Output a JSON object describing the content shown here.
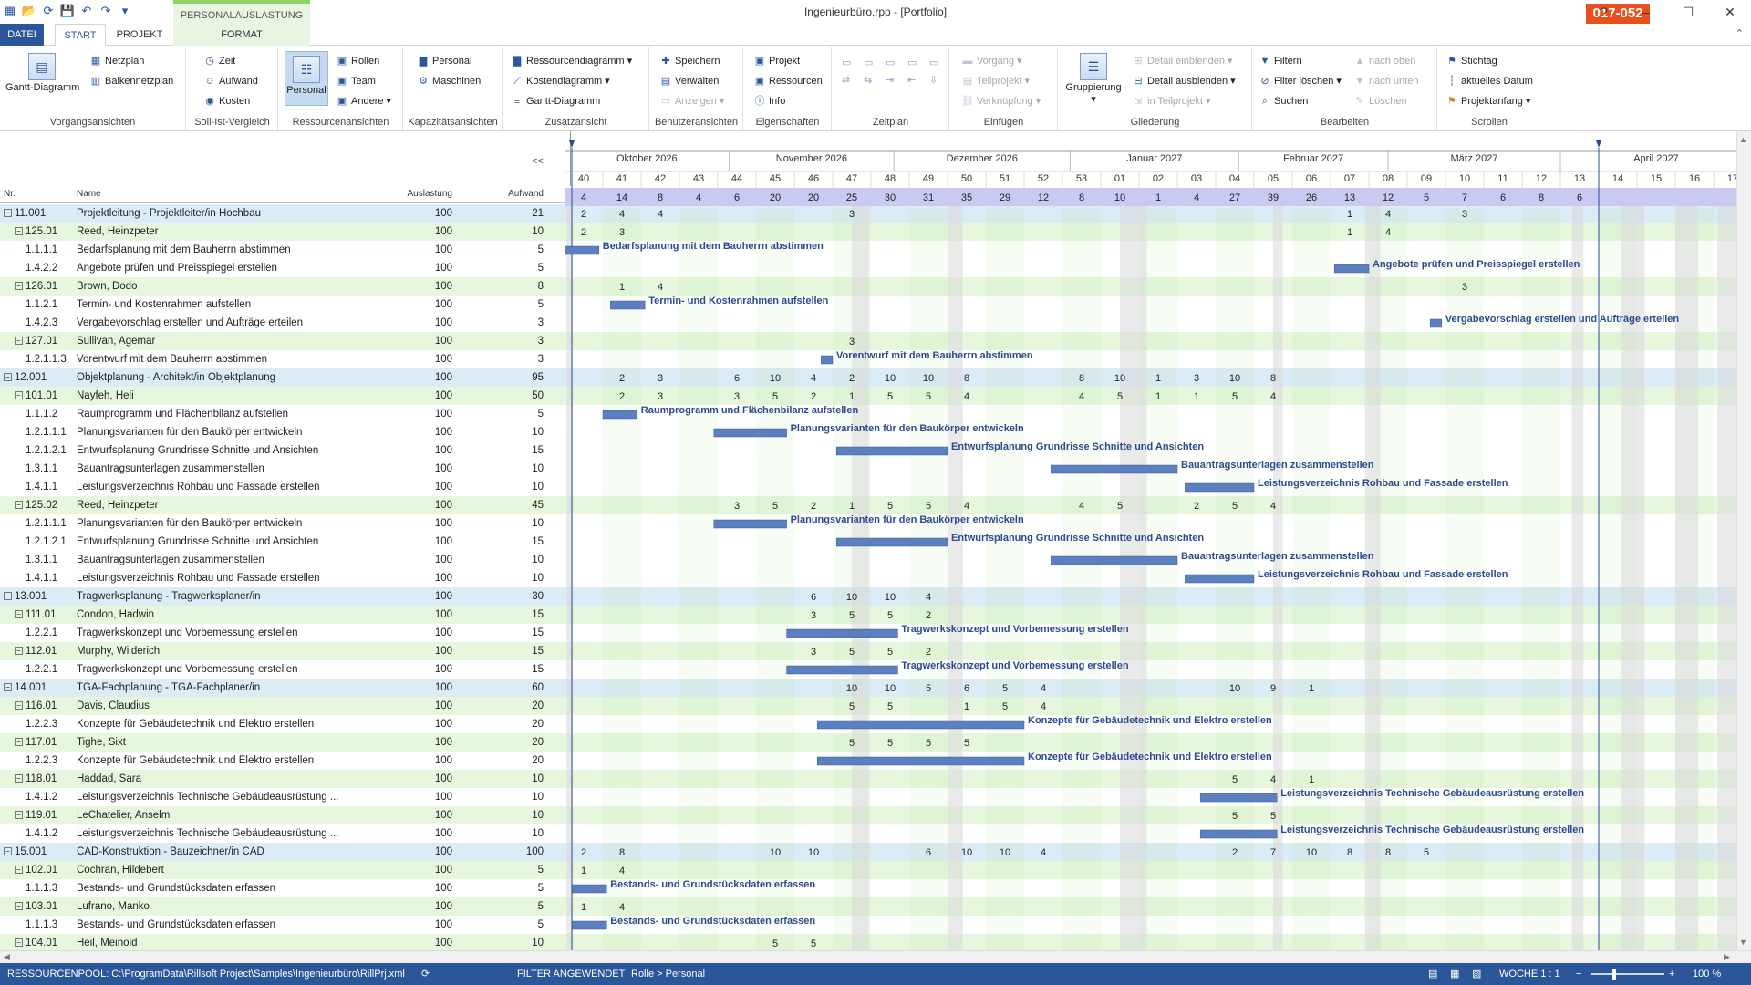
{
  "app": {
    "title": "Ingenieurbüro.rpp - [Portfolio]",
    "badge": "017-052",
    "context_tab": "PERSONALAUSLASTUNG"
  },
  "tabs": {
    "datei": "DATEI",
    "start": "START",
    "projekt": "PROJEKT",
    "format": "FORMAT"
  },
  "ribbon": {
    "vorgangsansichten": {
      "gantt": "Gantt-Diagramm",
      "netzplan": "Netzplan",
      "balkennetzplan": "Balkennetzplan",
      "label": "Vorgangsansichten"
    },
    "sollist": {
      "zeit": "Zeit",
      "aufwand": "Aufwand",
      "kosten": "Kosten",
      "label": "Soll-Ist-Vergleich"
    },
    "ressourcen": {
      "personal": "Personal",
      "rollen": "Rollen",
      "team": "Team",
      "andere": "Andere",
      "label": "Ressourcenansichten"
    },
    "kapazitaet": {
      "personal": "Personal",
      "maschinen": "Maschinen",
      "label": "Kapazitätsansichten"
    },
    "zusatz": {
      "ressourcendiagramm": "Ressourcendiagramm",
      "kostendiagramm": "Kostendiagramm",
      "gantt": "Gantt-Diagramm",
      "label": "Zusatzansicht"
    },
    "benutzer": {
      "speichern": "Speichern",
      "verwalten": "Verwalten",
      "anzeigen": "Anzeigen",
      "label": "Benutzeransichten"
    },
    "eigenschaften": {
      "projekt": "Projekt",
      "ressourcen": "Ressourcen",
      "info": "Info",
      "label": "Eigenschaften"
    },
    "zeitplan": {
      "label": "Zeitplan"
    },
    "einfuegen": {
      "vorgang": "Vorgang",
      "teilprojekt": "Teilprojekt",
      "verknuepfung": "Verknüpfung",
      "label": "Einfügen"
    },
    "gliederung": {
      "gruppierung": "Gruppierung",
      "detail_ein": "Detail einblenden",
      "detail_aus": "Detail ausblenden",
      "in_teilprojekt": "in Teilprojekt",
      "label": "Gliederung"
    },
    "bearbeiten": {
      "filtern": "Filtern",
      "filter_loeschen": "Filter löschen",
      "suchen": "Suchen",
      "nach_oben": "nach oben",
      "nach_unten": "nach unten",
      "loeschen": "Löschen",
      "label": "Bearbeiten"
    },
    "scrollen": {
      "stichtag": "Stichtag",
      "aktuelles_datum": "aktuelles Datum",
      "projektanfang": "Projektanfang",
      "label": "Scrollen"
    }
  },
  "grid": {
    "headers": {
      "nr": "Nr.",
      "name": "Name",
      "auslastung": "Auslastung",
      "aufwand": "Aufwand"
    },
    "collapse": "<<",
    "rows": [
      {
        "nr": "11.001",
        "name": "Projektleitung - Projektleiter/in Hochbau",
        "aus": "100",
        "auf": "21",
        "lvl": 1
      },
      {
        "nr": "125.01",
        "name": "Reed, Heinzpeter",
        "aus": "100",
        "auf": "10",
        "lvl": 2
      },
      {
        "nr": "1.1.1.1",
        "name": "Bedarfsplanung mit dem Bauherrn abstimmen",
        "aus": "100",
        "auf": "5",
        "lvl": 3
      },
      {
        "nr": "1.4.2.2",
        "name": "Angebote prüfen und Preisspiegel erstellen",
        "aus": "100",
        "auf": "5",
        "lvl": 3
      },
      {
        "nr": "126.01",
        "name": "Brown, Dodo",
        "aus": "100",
        "auf": "8",
        "lvl": 2
      },
      {
        "nr": "1.1.2.1",
        "name": "Termin- und Kostenrahmen aufstellen",
        "aus": "100",
        "auf": "5",
        "lvl": 3
      },
      {
        "nr": "1.4.2.3",
        "name": "Vergabevorschlag erstellen und Aufträge erteilen",
        "aus": "100",
        "auf": "3",
        "lvl": 3
      },
      {
        "nr": "127.01",
        "name": "Sullivan, Agemar",
        "aus": "100",
        "auf": "3",
        "lvl": 2
      },
      {
        "nr": "1.2.1.1.3",
        "name": "Vorentwurf mit dem Bauherrn abstimmen",
        "aus": "100",
        "auf": "3",
        "lvl": 3
      },
      {
        "nr": "12.001",
        "name": "Objektplanung - Architekt/in Objektplanung",
        "aus": "100",
        "auf": "95",
        "lvl": 1
      },
      {
        "nr": "101.01",
        "name": "Nayfeh, Heli",
        "aus": "100",
        "auf": "50",
        "lvl": 2
      },
      {
        "nr": "1.1.1.2",
        "name": "Raumprogramm und Flächenbilanz aufstellen",
        "aus": "100",
        "auf": "5",
        "lvl": 3
      },
      {
        "nr": "1.2.1.1.1",
        "name": "Planungsvarianten für den Baukörper entwickeln",
        "aus": "100",
        "auf": "10",
        "lvl": 3
      },
      {
        "nr": "1.2.1.2.1",
        "name": "Entwurfsplanung Grundrisse Schnitte und Ansichten",
        "aus": "100",
        "auf": "15",
        "lvl": 3
      },
      {
        "nr": "1.3.1.1",
        "name": "Bauantragsunterlagen zusammenstellen",
        "aus": "100",
        "auf": "10",
        "lvl": 3
      },
      {
        "nr": "1.4.1.1",
        "name": "Leistungsverzeichnis Rohbau und Fassade erstellen",
        "aus": "100",
        "auf": "10",
        "lvl": 3
      },
      {
        "nr": "125.02",
        "name": "Reed, Heinzpeter",
        "aus": "100",
        "auf": "45",
        "lvl": 2
      },
      {
        "nr": "1.2.1.1.1",
        "name": "Planungsvarianten für den Baukörper entwickeln",
        "aus": "100",
        "auf": "10",
        "lvl": 3
      },
      {
        "nr": "1.2.1.2.1",
        "name": "Entwurfsplanung Grundrisse Schnitte und Ansichten",
        "aus": "100",
        "auf": "15",
        "lvl": 3
      },
      {
        "nr": "1.3.1.1",
        "name": "Bauantragsunterlagen zusammenstellen",
        "aus": "100",
        "auf": "10",
        "lvl": 3
      },
      {
        "nr": "1.4.1.1",
        "name": "Leistungsverzeichnis Rohbau und Fassade erstellen",
        "aus": "100",
        "auf": "10",
        "lvl": 3
      },
      {
        "nr": "13.001",
        "name": "Tragwerksplanung - Tragwerksplaner/in",
        "aus": "100",
        "auf": "30",
        "lvl": 1
      },
      {
        "nr": "111.01",
        "name": "Condon, Hadwin",
        "aus": "100",
        "auf": "15",
        "lvl": 2
      },
      {
        "nr": "1.2.2.1",
        "name": "Tragwerkskonzept und Vorbemessung erstellen",
        "aus": "100",
        "auf": "15",
        "lvl": 3
      },
      {
        "nr": "112.01",
        "name": "Murphy, Wilderich",
        "aus": "100",
        "auf": "15",
        "lvl": 2
      },
      {
        "nr": "1.2.2.1",
        "name": "Tragwerkskonzept und Vorbemessung erstellen",
        "aus": "100",
        "auf": "15",
        "lvl": 3
      },
      {
        "nr": "14.001",
        "name": "TGA-Fachplanung - TGA-Fachplaner/in",
        "aus": "100",
        "auf": "60",
        "lvl": 1
      },
      {
        "nr": "116.01",
        "name": "Davis, Claudius",
        "aus": "100",
        "auf": "20",
        "lvl": 2
      },
      {
        "nr": "1.2.2.3",
        "name": "Konzepte für Gebäudetechnik und Elektro erstellen",
        "aus": "100",
        "auf": "20",
        "lvl": 3
      },
      {
        "nr": "117.01",
        "name": "Tighe, Sixt",
        "aus": "100",
        "auf": "20",
        "lvl": 2
      },
      {
        "nr": "1.2.2.3",
        "name": "Konzepte für Gebäudetechnik und Elektro erstellen",
        "aus": "100",
        "auf": "20",
        "lvl": 3
      },
      {
        "nr": "118.01",
        "name": "Haddad, Sara",
        "aus": "100",
        "auf": "10",
        "lvl": 2
      },
      {
        "nr": "1.4.1.2",
        "name": "Leistungsverzeichnis Technische Gebäudeausrüstung ...",
        "aus": "100",
        "auf": "10",
        "lvl": 3
      },
      {
        "nr": "119.01",
        "name": "LeChatelier, Anselm",
        "aus": "100",
        "auf": "10",
        "lvl": 2
      },
      {
        "nr": "1.4.1.2",
        "name": "Leistungsverzeichnis Technische Gebäudeausrüstung ...",
        "aus": "100",
        "auf": "10",
        "lvl": 3
      },
      {
        "nr": "15.001",
        "name": "CAD-Konstruktion - Bauzeichner/in CAD",
        "aus": "100",
        "auf": "100",
        "lvl": 1
      },
      {
        "nr": "102.01",
        "name": "Cochran, Hildebert",
        "aus": "100",
        "auf": "5",
        "lvl": 2
      },
      {
        "nr": "1.1.1.3",
        "name": "Bestands- und Grundstücksdaten erfassen",
        "aus": "100",
        "auf": "5",
        "lvl": 3
      },
      {
        "nr": "103.01",
        "name": "Lufrano, Manko",
        "aus": "100",
        "auf": "5",
        "lvl": 2
      },
      {
        "nr": "1.1.1.3",
        "name": "Bestands- und Grundstücksdaten erfassen",
        "aus": "100",
        "auf": "5",
        "lvl": 3
      },
      {
        "nr": "104.01",
        "name": "Heil, Meinold",
        "aus": "100",
        "auf": "10",
        "lvl": 2
      }
    ]
  },
  "timeline": {
    "months": [
      "Oktober 2026",
      "November 2026",
      "Dezember 2026",
      "Januar 2027",
      "Februar 2027",
      "März 2027",
      "April 2027"
    ],
    "weeks": [
      "40",
      "41",
      "42",
      "43",
      "44",
      "45",
      "46",
      "47",
      "48",
      "49",
      "50",
      "51",
      "52",
      "53",
      "01",
      "02",
      "03",
      "04",
      "05",
      "06",
      "07",
      "08",
      "09",
      "10",
      "11",
      "12",
      "13",
      "14",
      "15",
      "16",
      "17"
    ],
    "totals": [
      "4",
      "14",
      "8",
      "4",
      "6",
      "20",
      "20",
      "25",
      "30",
      "31",
      "35",
      "29",
      "12",
      "8",
      "10",
      "1",
      "4",
      "27",
      "39",
      "26",
      "13",
      "12",
      "5",
      "7",
      "6",
      "8",
      "6",
      "",
      "",
      "",
      ""
    ]
  },
  "cells": [
    {
      "r": 0,
      "w": 0,
      "v": "2"
    },
    {
      "r": 0,
      "w": 1,
      "v": "4"
    },
    {
      "r": 0,
      "w": 2,
      "v": "4"
    },
    {
      "r": 0,
      "w": 7,
      "v": "3"
    },
    {
      "r": 0,
      "w": 20,
      "v": "1"
    },
    {
      "r": 0,
      "w": 21,
      "v": "4"
    },
    {
      "r": 0,
      "w": 23,
      "v": "3"
    },
    {
      "r": 1,
      "w": 0,
      "v": "2"
    },
    {
      "r": 1,
      "w": 1,
      "v": "3"
    },
    {
      "r": 1,
      "w": 20,
      "v": "1"
    },
    {
      "r": 1,
      "w": 21,
      "v": "4"
    },
    {
      "r": 4,
      "w": 1,
      "v": "1"
    },
    {
      "r": 4,
      "w": 2,
      "v": "4"
    },
    {
      "r": 4,
      "w": 23,
      "v": "3"
    },
    {
      "r": 7,
      "w": 7,
      "v": "3"
    },
    {
      "r": 9,
      "w": 1,
      "v": "2"
    },
    {
      "r": 9,
      "w": 2,
      "v": "3"
    },
    {
      "r": 9,
      "w": 4,
      "v": "6"
    },
    {
      "r": 9,
      "w": 5,
      "v": "10"
    },
    {
      "r": 9,
      "w": 6,
      "v": "4"
    },
    {
      "r": 9,
      "w": 7,
      "v": "2"
    },
    {
      "r": 9,
      "w": 8,
      "v": "10"
    },
    {
      "r": 9,
      "w": 9,
      "v": "10"
    },
    {
      "r": 9,
      "w": 10,
      "v": "8"
    },
    {
      "r": 9,
      "w": 13,
      "v": "8"
    },
    {
      "r": 9,
      "w": 14,
      "v": "10"
    },
    {
      "r": 9,
      "w": 15,
      "v": "1"
    },
    {
      "r": 9,
      "w": 16,
      "v": "3"
    },
    {
      "r": 9,
      "w": 17,
      "v": "10"
    },
    {
      "r": 9,
      "w": 18,
      "v": "8"
    },
    {
      "r": 10,
      "w": 1,
      "v": "2"
    },
    {
      "r": 10,
      "w": 2,
      "v": "3"
    },
    {
      "r": 10,
      "w": 4,
      "v": "3"
    },
    {
      "r": 10,
      "w": 5,
      "v": "5"
    },
    {
      "r": 10,
      "w": 6,
      "v": "2"
    },
    {
      "r": 10,
      "w": 7,
      "v": "1"
    },
    {
      "r": 10,
      "w": 8,
      "v": "5"
    },
    {
      "r": 10,
      "w": 9,
      "v": "5"
    },
    {
      "r": 10,
      "w": 10,
      "v": "4"
    },
    {
      "r": 10,
      "w": 13,
      "v": "4"
    },
    {
      "r": 10,
      "w": 14,
      "v": "5"
    },
    {
      "r": 10,
      "w": 15,
      "v": "1"
    },
    {
      "r": 10,
      "w": 16,
      "v": "1"
    },
    {
      "r": 10,
      "w": 17,
      "v": "5"
    },
    {
      "r": 10,
      "w": 18,
      "v": "4"
    },
    {
      "r": 16,
      "w": 4,
      "v": "3"
    },
    {
      "r": 16,
      "w": 5,
      "v": "5"
    },
    {
      "r": 16,
      "w": 6,
      "v": "2"
    },
    {
      "r": 16,
      "w": 7,
      "v": "1"
    },
    {
      "r": 16,
      "w": 8,
      "v": "5"
    },
    {
      "r": 16,
      "w": 9,
      "v": "5"
    },
    {
      "r": 16,
      "w": 10,
      "v": "4"
    },
    {
      "r": 16,
      "w": 13,
      "v": "4"
    },
    {
      "r": 16,
      "w": 14,
      "v": "5"
    },
    {
      "r": 16,
      "w": 16,
      "v": "2"
    },
    {
      "r": 16,
      "w": 17,
      "v": "5"
    },
    {
      "r": 16,
      "w": 18,
      "v": "4"
    },
    {
      "r": 21,
      "w": 6,
      "v": "6"
    },
    {
      "r": 21,
      "w": 7,
      "v": "10"
    },
    {
      "r": 21,
      "w": 8,
      "v": "10"
    },
    {
      "r": 21,
      "w": 9,
      "v": "4"
    },
    {
      "r": 22,
      "w": 6,
      "v": "3"
    },
    {
      "r": 22,
      "w": 7,
      "v": "5"
    },
    {
      "r": 22,
      "w": 8,
      "v": "5"
    },
    {
      "r": 22,
      "w": 9,
      "v": "2"
    },
    {
      "r": 24,
      "w": 6,
      "v": "3"
    },
    {
      "r": 24,
      "w": 7,
      "v": "5"
    },
    {
      "r": 24,
      "w": 8,
      "v": "5"
    },
    {
      "r": 24,
      "w": 9,
      "v": "2"
    },
    {
      "r": 26,
      "w": 7,
      "v": "10"
    },
    {
      "r": 26,
      "w": 8,
      "v": "10"
    },
    {
      "r": 26,
      "w": 9,
      "v": "5"
    },
    {
      "r": 26,
      "w": 10,
      "v": "6"
    },
    {
      "r": 26,
      "w": 11,
      "v": "5"
    },
    {
      "r": 26,
      "w": 12,
      "v": "4"
    },
    {
      "r": 26,
      "w": 17,
      "v": "10"
    },
    {
      "r": 26,
      "w": 18,
      "v": "9"
    },
    {
      "r": 26,
      "w": 19,
      "v": "1"
    },
    {
      "r": 27,
      "w": 7,
      "v": "5"
    },
    {
      "r": 27,
      "w": 8,
      "v": "5"
    },
    {
      "r": 27,
      "w": 10,
      "v": "1"
    },
    {
      "r": 27,
      "w": 11,
      "v": "5"
    },
    {
      "r": 27,
      "w": 12,
      "v": "4"
    },
    {
      "r": 29,
      "w": 7,
      "v": "5"
    },
    {
      "r": 29,
      "w": 8,
      "v": "5"
    },
    {
      "r": 29,
      "w": 9,
      "v": "5"
    },
    {
      "r": 29,
      "w": 10,
      "v": "5"
    },
    {
      "r": 31,
      "w": 17,
      "v": "5"
    },
    {
      "r": 31,
      "w": 18,
      "v": "4"
    },
    {
      "r": 31,
      "w": 19,
      "v": "1"
    },
    {
      "r": 33,
      "w": 17,
      "v": "5"
    },
    {
      "r": 33,
      "w": 18,
      "v": "5"
    },
    {
      "r": 35,
      "w": 0,
      "v": "2"
    },
    {
      "r": 35,
      "w": 1,
      "v": "8"
    },
    {
      "r": 35,
      "w": 5,
      "v": "10"
    },
    {
      "r": 35,
      "w": 6,
      "v": "10"
    },
    {
      "r": 35,
      "w": 9,
      "v": "6"
    },
    {
      "r": 35,
      "w": 10,
      "v": "10"
    },
    {
      "r": 35,
      "w": 11,
      "v": "10"
    },
    {
      "r": 35,
      "w": 12,
      "v": "4"
    },
    {
      "r": 35,
      "w": 17,
      "v": "2"
    },
    {
      "r": 35,
      "w": 18,
      "v": "7"
    },
    {
      "r": 35,
      "w": 19,
      "v": "10"
    },
    {
      "r": 35,
      "w": 20,
      "v": "8"
    },
    {
      "r": 35,
      "w": 21,
      "v": "8"
    },
    {
      "r": 35,
      "w": 22,
      "v": "5"
    },
    {
      "r": 36,
      "w": 0,
      "v": "1"
    },
    {
      "r": 36,
      "w": 1,
      "v": "4"
    },
    {
      "r": 38,
      "w": 0,
      "v": "1"
    },
    {
      "r": 38,
      "w": 1,
      "v": "4"
    },
    {
      "r": 40,
      "w": 5,
      "v": "5"
    },
    {
      "r": 40,
      "w": 6,
      "v": "5"
    }
  ],
  "bars": [
    {
      "r": 2,
      "s": 0,
      "e": 0.9,
      "label": "Bedarfsplanung mit dem Bauherrn abstimmen"
    },
    {
      "r": 3,
      "s": 20.1,
      "e": 21.0,
      "label": "Angebote prüfen und Preisspiegel erstellen"
    },
    {
      "r": 5,
      "s": 1.2,
      "e": 2.1,
      "label": "Termin- und Kostenrahmen aufstellen"
    },
    {
      "r": 6,
      "s": 22.6,
      "e": 22.9,
      "label": "Vergabevorschlag erstellen und Aufträge erteilen"
    },
    {
      "r": 8,
      "s": 6.7,
      "e": 7.0,
      "label": "Vorentwurf mit dem Bauherrn abstimmen"
    },
    {
      "r": 11,
      "s": 1.0,
      "e": 1.9,
      "label": "Raumprogramm und Flächenbilanz aufstellen"
    },
    {
      "r": 12,
      "s": 3.9,
      "e": 5.8,
      "label": "Planungsvarianten für den Baukörper entwickeln"
    },
    {
      "r": 13,
      "s": 7.1,
      "e": 10.0,
      "label": "Entwurfsplanung Grundrisse Schnitte und Ansichten"
    },
    {
      "r": 14,
      "s": 12.7,
      "e": 16.0,
      "label": "Bauantragsunterlagen zusammenstellen"
    },
    {
      "r": 15,
      "s": 16.2,
      "e": 18.0,
      "label": "Leistungsverzeichnis Rohbau und Fassade erstellen"
    },
    {
      "r": 17,
      "s": 3.9,
      "e": 5.8,
      "label": "Planungsvarianten für den Baukörper entwickeln"
    },
    {
      "r": 18,
      "s": 7.1,
      "e": 10.0,
      "label": "Entwurfsplanung Grundrisse Schnitte und Ansichten"
    },
    {
      "r": 19,
      "s": 12.7,
      "e": 16.0,
      "label": "Bauantragsunterlagen zusammenstellen"
    },
    {
      "r": 20,
      "s": 16.2,
      "e": 18.0,
      "label": "Leistungsverzeichnis Rohbau und Fassade erstellen"
    },
    {
      "r": 23,
      "s": 5.8,
      "e": 8.7,
      "label": "Tragwerkskonzept und Vorbemessung erstellen"
    },
    {
      "r": 25,
      "s": 5.8,
      "e": 8.7,
      "label": "Tragwerkskonzept und Vorbemessung erstellen"
    },
    {
      "r": 28,
      "s": 6.6,
      "e": 12.0,
      "label": "Konzepte für Gebäudetechnik und Elektro erstellen"
    },
    {
      "r": 30,
      "s": 6.6,
      "e": 12.0,
      "label": "Konzepte für Gebäudetechnik und Elektro erstellen"
    },
    {
      "r": 32,
      "s": 16.6,
      "e": 18.6,
      "label": "Leistungsverzeichnis Technische Gebäudeausrüstung erstellen"
    },
    {
      "r": 34,
      "s": 16.6,
      "e": 18.6,
      "label": "Leistungsverzeichnis Technische Gebäudeausrüstung erstellen"
    },
    {
      "r": 37,
      "s": 0.2,
      "e": 1.1,
      "label": "Bestands- und Grundstücksdaten erfassen"
    },
    {
      "r": 39,
      "s": 0.2,
      "e": 1.1,
      "label": "Bestands- und Grundstücksdaten erfassen"
    }
  ],
  "status": {
    "pool": "RESSOURCENPOOL: C:\\ProgramData\\Rillsoft Project\\Samples\\Ingenieurbüro\\RillPrj.xml",
    "filter": "FILTER ANGEWENDET",
    "path": "Rolle > Personal",
    "scale": "WOCHE 1 : 1",
    "zoom": "100 %"
  },
  "colors": {
    "accent": "#2b579a",
    "badge": "#e8501e",
    "row_lvl1": "#dcecf7",
    "row_lvl2": "#e6f7de",
    "bar": "#5b7fbf",
    "bar_label": "#2b4a8f"
  }
}
